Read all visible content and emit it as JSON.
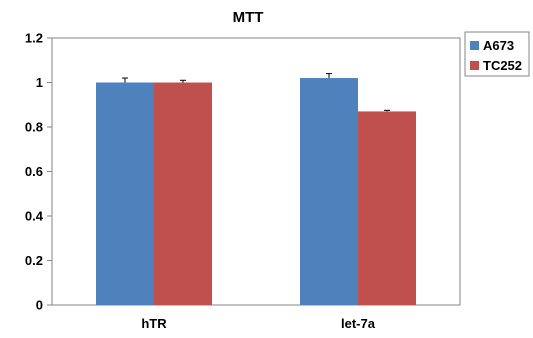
{
  "chart_data": {
    "type": "bar",
    "title": "MTT",
    "xlabel": "",
    "ylabel": "",
    "categories": [
      "hTR",
      "let-7a"
    ],
    "series": [
      {
        "name": "A673",
        "values": [
          1.0,
          1.02
        ],
        "error": [
          0.02,
          0.02
        ],
        "color": "#4f81bd"
      },
      {
        "name": "TC252",
        "values": [
          1.0,
          0.87
        ],
        "error": [
          0.01,
          0.005
        ],
        "color": "#c0504d"
      }
    ],
    "ylim": [
      0,
      1.2
    ],
    "yticks": [
      "0",
      "0.2",
      "0.4",
      "0.6",
      "0.8",
      "1",
      "1.2"
    ],
    "grid": false,
    "legend": "right"
  }
}
